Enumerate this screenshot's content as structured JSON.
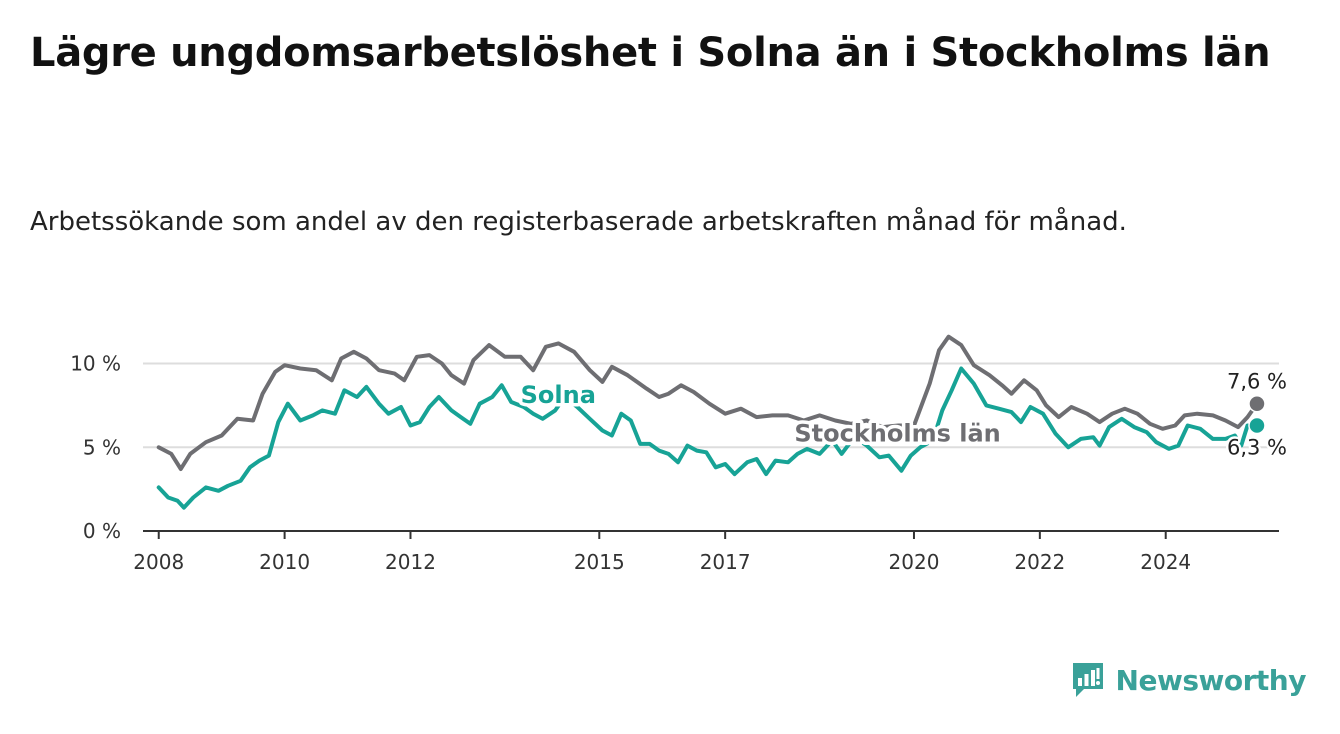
{
  "title": "Lägre ungdomsarbetslöshet i Solna än i Stockholms län",
  "subtitle": "Arbetssökande som andel av den registerbaserade arbetskraften månad för månad.",
  "brand": {
    "name": "Newsworthy",
    "logo_icon": "newsworthy-logo-icon",
    "color": "#3aa199"
  },
  "chart_data": {
    "type": "line",
    "title": "Lägre ungdomsarbetslöshet i Solna än i Stockholms län",
    "subtitle": "Arbetssökande som andel av den registerbaserade arbetskraften månad för månad.",
    "xlabel": "",
    "ylabel": "",
    "xlim": [
      2007.75,
      2025.8
    ],
    "ylim": [
      0,
      12
    ],
    "x_ticks": [
      {
        "value": 2008,
        "label": "2008"
      },
      {
        "value": 2010,
        "label": "2010"
      },
      {
        "value": 2012,
        "label": "2012"
      },
      {
        "value": 2015,
        "label": "2015"
      },
      {
        "value": 2017,
        "label": "2017"
      },
      {
        "value": 2020,
        "label": "2020"
      },
      {
        "value": 2022,
        "label": "2022"
      },
      {
        "value": 2024,
        "label": "2024"
      }
    ],
    "y_ticks": [
      {
        "value": 0,
        "label": "0 %"
      },
      {
        "value": 5,
        "label": "5 %"
      },
      {
        "value": 10,
        "label": "10 %"
      }
    ],
    "grid": true,
    "series": [
      {
        "name": "Stockholms län",
        "label": "Stockholms län",
        "color": "#6e6e72",
        "end_label": "7,6 %",
        "points": [
          [
            2008.0,
            5.0
          ],
          [
            2008.2,
            4.6
          ],
          [
            2008.35,
            3.7
          ],
          [
            2008.5,
            4.6
          ],
          [
            2008.75,
            5.3
          ],
          [
            2009.0,
            5.7
          ],
          [
            2009.25,
            6.7
          ],
          [
            2009.5,
            6.6
          ],
          [
            2009.65,
            8.2
          ],
          [
            2009.85,
            9.5
          ],
          [
            2010.0,
            9.9
          ],
          [
            2010.25,
            9.7
          ],
          [
            2010.5,
            9.6
          ],
          [
            2010.75,
            9.0
          ],
          [
            2010.9,
            10.3
          ],
          [
            2011.1,
            10.7
          ],
          [
            2011.3,
            10.3
          ],
          [
            2011.5,
            9.6
          ],
          [
            2011.75,
            9.4
          ],
          [
            2011.9,
            9.0
          ],
          [
            2012.1,
            10.4
          ],
          [
            2012.3,
            10.5
          ],
          [
            2012.5,
            10.0
          ],
          [
            2012.65,
            9.3
          ],
          [
            2012.85,
            8.8
          ],
          [
            2013.0,
            10.2
          ],
          [
            2013.25,
            11.1
          ],
          [
            2013.5,
            10.4
          ],
          [
            2013.75,
            10.4
          ],
          [
            2013.95,
            9.6
          ],
          [
            2014.15,
            11.0
          ],
          [
            2014.35,
            11.2
          ],
          [
            2014.6,
            10.7
          ],
          [
            2014.85,
            9.6
          ],
          [
            2015.05,
            8.9
          ],
          [
            2015.2,
            9.8
          ],
          [
            2015.45,
            9.3
          ],
          [
            2015.75,
            8.5
          ],
          [
            2015.95,
            8.0
          ],
          [
            2016.1,
            8.2
          ],
          [
            2016.3,
            8.7
          ],
          [
            2016.5,
            8.3
          ],
          [
            2016.75,
            7.6
          ],
          [
            2017.0,
            7.0
          ],
          [
            2017.25,
            7.3
          ],
          [
            2017.5,
            6.8
          ],
          [
            2017.75,
            6.9
          ],
          [
            2018.0,
            6.9
          ],
          [
            2018.25,
            6.6
          ],
          [
            2018.5,
            6.9
          ],
          [
            2018.75,
            6.6
          ],
          [
            2019.0,
            6.4
          ],
          [
            2019.25,
            6.6
          ],
          [
            2019.5,
            6.2
          ],
          [
            2019.75,
            6.3
          ],
          [
            2020.0,
            6.3
          ],
          [
            2020.25,
            8.8
          ],
          [
            2020.4,
            10.8
          ],
          [
            2020.55,
            11.6
          ],
          [
            2020.75,
            11.1
          ],
          [
            2020.95,
            9.9
          ],
          [
            2021.2,
            9.3
          ],
          [
            2021.4,
            8.7
          ],
          [
            2021.55,
            8.2
          ],
          [
            2021.75,
            9.0
          ],
          [
            2021.95,
            8.4
          ],
          [
            2022.1,
            7.5
          ],
          [
            2022.3,
            6.8
          ],
          [
            2022.5,
            7.4
          ],
          [
            2022.75,
            7.0
          ],
          [
            2022.95,
            6.5
          ],
          [
            2023.15,
            7.0
          ],
          [
            2023.35,
            7.3
          ],
          [
            2023.55,
            7.0
          ],
          [
            2023.75,
            6.4
          ],
          [
            2023.95,
            6.1
          ],
          [
            2024.15,
            6.3
          ],
          [
            2024.3,
            6.9
          ],
          [
            2024.5,
            7.0
          ],
          [
            2024.75,
            6.9
          ],
          [
            2024.95,
            6.6
          ],
          [
            2025.15,
            6.2
          ],
          [
            2025.3,
            6.8
          ],
          [
            2025.45,
            7.6
          ]
        ]
      },
      {
        "name": "Solna",
        "label": "Solna",
        "color": "#17a396",
        "end_label": "6,3 %",
        "points": [
          [
            2008.0,
            2.6
          ],
          [
            2008.15,
            2.0
          ],
          [
            2008.3,
            1.8
          ],
          [
            2008.4,
            1.4
          ],
          [
            2008.55,
            2.0
          ],
          [
            2008.75,
            2.6
          ],
          [
            2008.95,
            2.4
          ],
          [
            2009.1,
            2.7
          ],
          [
            2009.3,
            3.0
          ],
          [
            2009.45,
            3.8
          ],
          [
            2009.6,
            4.2
          ],
          [
            2009.75,
            4.5
          ],
          [
            2009.9,
            6.5
          ],
          [
            2010.05,
            7.6
          ],
          [
            2010.25,
            6.6
          ],
          [
            2010.45,
            6.9
          ],
          [
            2010.6,
            7.2
          ],
          [
            2010.8,
            7.0
          ],
          [
            2010.95,
            8.4
          ],
          [
            2011.15,
            8.0
          ],
          [
            2011.3,
            8.6
          ],
          [
            2011.5,
            7.6
          ],
          [
            2011.65,
            7.0
          ],
          [
            2011.85,
            7.4
          ],
          [
            2012.0,
            6.3
          ],
          [
            2012.15,
            6.5
          ],
          [
            2012.3,
            7.4
          ],
          [
            2012.45,
            8.0
          ],
          [
            2012.65,
            7.2
          ],
          [
            2012.8,
            6.8
          ],
          [
            2012.95,
            6.4
          ],
          [
            2013.1,
            7.6
          ],
          [
            2013.3,
            8.0
          ],
          [
            2013.45,
            8.7
          ],
          [
            2013.6,
            7.7
          ],
          [
            2013.8,
            7.4
          ],
          [
            2013.95,
            7.0
          ],
          [
            2014.1,
            6.7
          ],
          [
            2014.3,
            7.2
          ],
          [
            2014.45,
            8.0
          ],
          [
            2014.65,
            7.4
          ],
          [
            2014.85,
            6.7
          ],
          [
            2015.05,
            6.0
          ],
          [
            2015.2,
            5.7
          ],
          [
            2015.35,
            7.0
          ],
          [
            2015.5,
            6.6
          ],
          [
            2015.65,
            5.2
          ],
          [
            2015.8,
            5.2
          ],
          [
            2015.95,
            4.8
          ],
          [
            2016.1,
            4.6
          ],
          [
            2016.25,
            4.1
          ],
          [
            2016.4,
            5.1
          ],
          [
            2016.55,
            4.8
          ],
          [
            2016.7,
            4.7
          ],
          [
            2016.85,
            3.8
          ],
          [
            2017.0,
            4.0
          ],
          [
            2017.15,
            3.4
          ],
          [
            2017.35,
            4.1
          ],
          [
            2017.5,
            4.3
          ],
          [
            2017.65,
            3.4
          ],
          [
            2017.8,
            4.2
          ],
          [
            2018.0,
            4.1
          ],
          [
            2018.15,
            4.6
          ],
          [
            2018.3,
            4.9
          ],
          [
            2018.5,
            4.6
          ],
          [
            2018.7,
            5.4
          ],
          [
            2018.85,
            4.6
          ],
          [
            2019.05,
            5.6
          ],
          [
            2019.25,
            5.1
          ],
          [
            2019.45,
            4.4
          ],
          [
            2019.6,
            4.5
          ],
          [
            2019.8,
            3.6
          ],
          [
            2019.95,
            4.5
          ],
          [
            2020.1,
            5.0
          ],
          [
            2020.3,
            5.4
          ],
          [
            2020.45,
            7.2
          ],
          [
            2020.6,
            8.4
          ],
          [
            2020.75,
            9.7
          ],
          [
            2020.95,
            8.8
          ],
          [
            2021.15,
            7.5
          ],
          [
            2021.35,
            7.3
          ],
          [
            2021.55,
            7.1
          ],
          [
            2021.7,
            6.5
          ],
          [
            2021.85,
            7.4
          ],
          [
            2022.05,
            7.0
          ],
          [
            2022.25,
            5.8
          ],
          [
            2022.45,
            5.0
          ],
          [
            2022.65,
            5.5
          ],
          [
            2022.85,
            5.6
          ],
          [
            2022.95,
            5.1
          ],
          [
            2023.1,
            6.2
          ],
          [
            2023.3,
            6.7
          ],
          [
            2023.5,
            6.2
          ],
          [
            2023.7,
            5.9
          ],
          [
            2023.85,
            5.3
          ],
          [
            2024.05,
            4.9
          ],
          [
            2024.2,
            5.1
          ],
          [
            2024.35,
            6.3
          ],
          [
            2024.55,
            6.1
          ],
          [
            2024.75,
            5.5
          ],
          [
            2024.95,
            5.5
          ],
          [
            2025.1,
            5.7
          ],
          [
            2025.2,
            5.1
          ],
          [
            2025.3,
            6.3
          ],
          [
            2025.45,
            6.3
          ]
        ]
      }
    ]
  }
}
